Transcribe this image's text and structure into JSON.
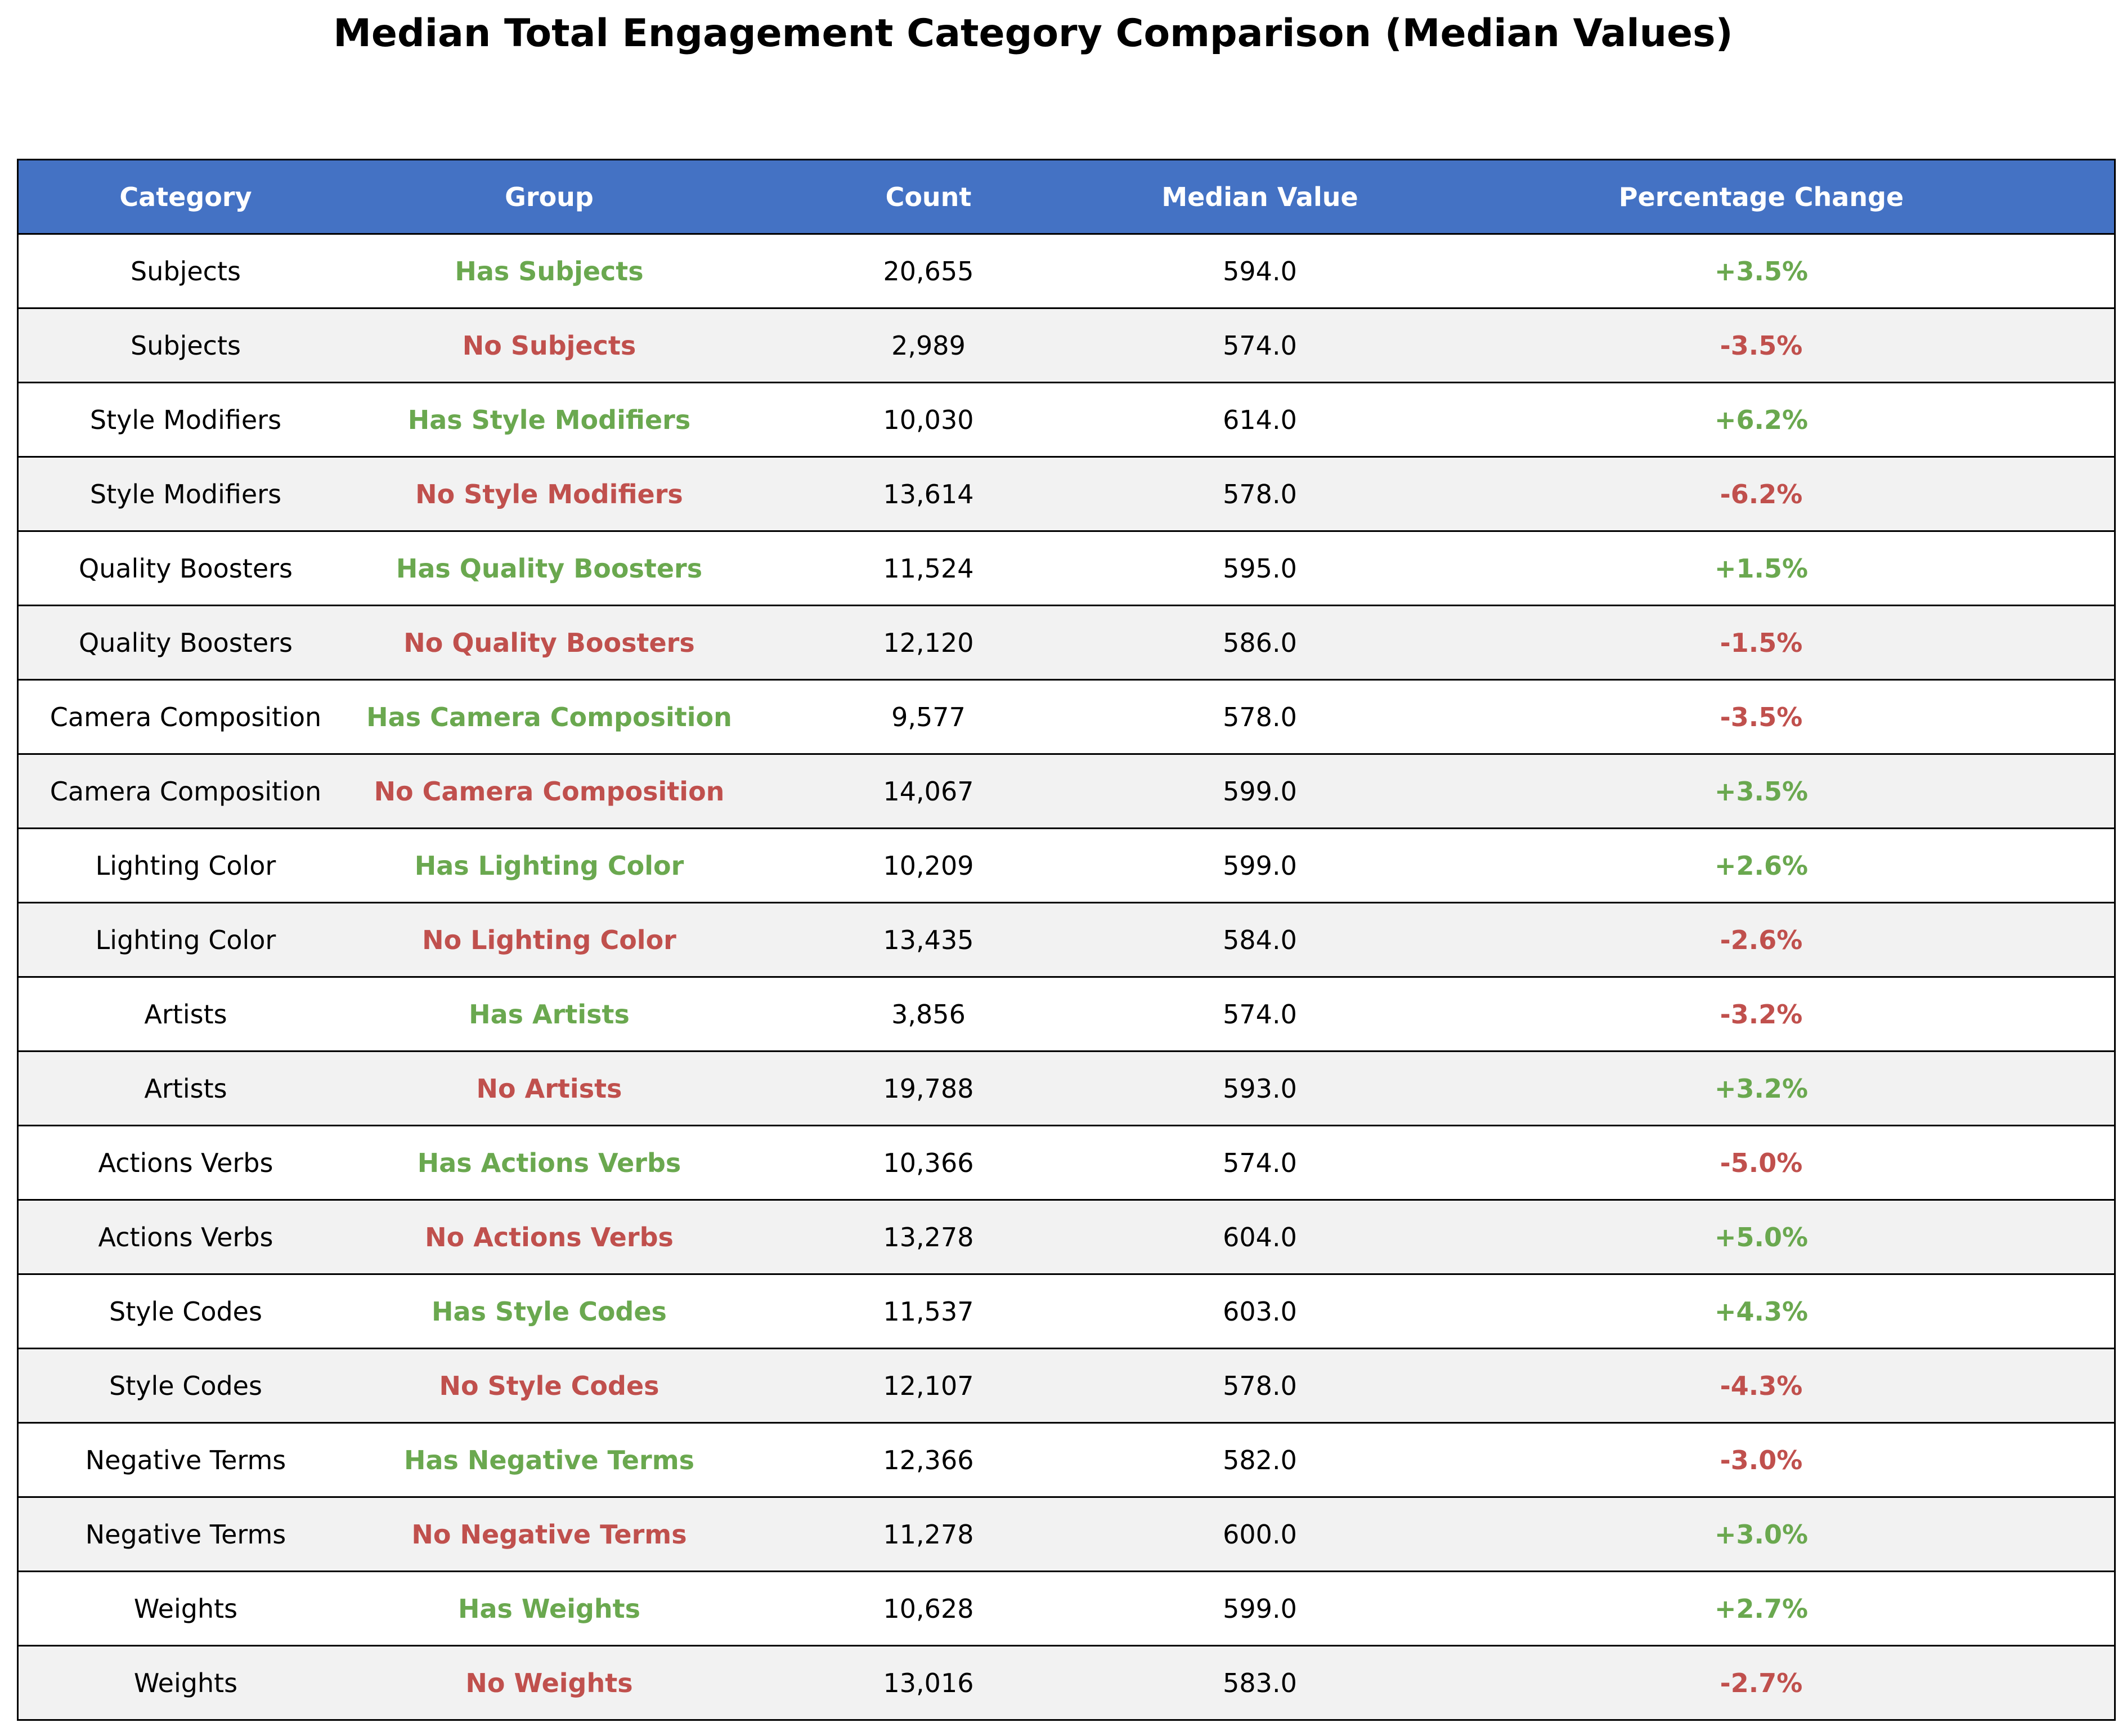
{
  "chart_data": {
    "type": "table",
    "title": "Median Total Engagement Category Comparison (Median Values)",
    "columns": [
      "Category",
      "Group",
      "Count",
      "Median Value",
      "Percentage Change"
    ],
    "rows": [
      {
        "category": "Subjects",
        "group": "Has Subjects",
        "count": "20,655",
        "median": "594.0",
        "change": "+3.5%"
      },
      {
        "category": "Subjects",
        "group": "No Subjects",
        "count": "2,989",
        "median": "574.0",
        "change": "-3.5%"
      },
      {
        "category": "Style Modifiers",
        "group": "Has Style Modifiers",
        "count": "10,030",
        "median": "614.0",
        "change": "+6.2%"
      },
      {
        "category": "Style Modifiers",
        "group": "No Style Modifiers",
        "count": "13,614",
        "median": "578.0",
        "change": "-6.2%"
      },
      {
        "category": "Quality Boosters",
        "group": "Has Quality Boosters",
        "count": "11,524",
        "median": "595.0",
        "change": "+1.5%"
      },
      {
        "category": "Quality Boosters",
        "group": "No Quality Boosters",
        "count": "12,120",
        "median": "586.0",
        "change": "-1.5%"
      },
      {
        "category": "Camera Composition",
        "group": "Has Camera Composition",
        "count": "9,577",
        "median": "578.0",
        "change": "-3.5%"
      },
      {
        "category": "Camera Composition",
        "group": "No Camera Composition",
        "count": "14,067",
        "median": "599.0",
        "change": "+3.5%"
      },
      {
        "category": "Lighting Color",
        "group": "Has Lighting Color",
        "count": "10,209",
        "median": "599.0",
        "change": "+2.6%"
      },
      {
        "category": "Lighting Color",
        "group": "No Lighting Color",
        "count": "13,435",
        "median": "584.0",
        "change": "-2.6%"
      },
      {
        "category": "Artists",
        "group": "Has Artists",
        "count": "3,856",
        "median": "574.0",
        "change": "-3.2%"
      },
      {
        "category": "Artists",
        "group": "No Artists",
        "count": "19,788",
        "median": "593.0",
        "change": "+3.2%"
      },
      {
        "category": "Actions Verbs",
        "group": "Has Actions Verbs",
        "count": "10,366",
        "median": "574.0",
        "change": "-5.0%"
      },
      {
        "category": "Actions Verbs",
        "group": "No Actions Verbs",
        "count": "13,278",
        "median": "604.0",
        "change": "+5.0%"
      },
      {
        "category": "Style Codes",
        "group": "Has Style Codes",
        "count": "11,537",
        "median": "603.0",
        "change": "+4.3%"
      },
      {
        "category": "Style Codes",
        "group": "No Style Codes",
        "count": "12,107",
        "median": "578.0",
        "change": "-4.3%"
      },
      {
        "category": "Negative Terms",
        "group": "Has Negative Terms",
        "count": "12,366",
        "median": "582.0",
        "change": "-3.0%"
      },
      {
        "category": "Negative Terms",
        "group": "No Negative Terms",
        "count": "11,278",
        "median": "600.0",
        "change": "+3.0%"
      },
      {
        "category": "Weights",
        "group": "Has Weights",
        "count": "10,628",
        "median": "599.0",
        "change": "+2.7%"
      },
      {
        "category": "Weights",
        "group": "No Weights",
        "count": "13,016",
        "median": "583.0",
        "change": "-2.7%"
      }
    ]
  },
  "colors": {
    "header_bg": "#4472c4",
    "positive": "#6aa84f",
    "negative": "#c0504d",
    "row_alt": "#f2f2f2"
  }
}
